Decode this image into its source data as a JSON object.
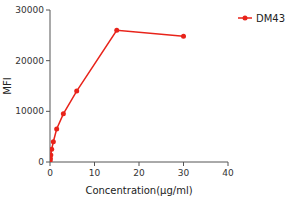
{
  "chart_data": {
    "type": "line",
    "x": [
      0.047,
      0.094,
      0.188,
      0.375,
      0.75,
      1.5,
      3,
      6,
      15,
      30
    ],
    "series": [
      {
        "name": "DM43",
        "color": "#E8231A",
        "marker": "circle",
        "line_style": "solid",
        "values": [
          300,
          700,
          1400,
          2500,
          4000,
          6500,
          9500,
          14000,
          26000,
          24800
        ]
      }
    ],
    "xlabel": "Concentration(μg/ml)",
    "ylabel": "MFI",
    "xlim": [
      0,
      40
    ],
    "ylim": [
      0,
      30000
    ],
    "xticks": [
      0,
      10,
      20,
      30,
      40
    ],
    "yticks": [
      0,
      10000,
      20000,
      30000
    ],
    "grid": false,
    "legend": "right"
  }
}
